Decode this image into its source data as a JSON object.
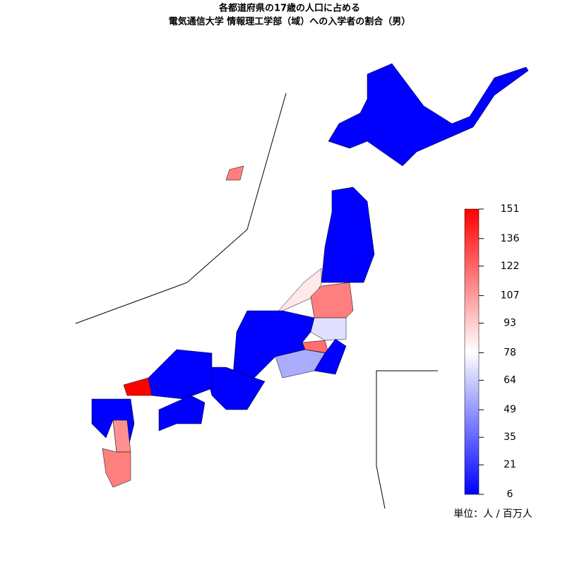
{
  "header": {
    "title_line1": "各都道府県の17歳の人口に占める",
    "title_line2": "電気通信大学 情報理工学部（域）への入学者の割合（男）"
  },
  "map": {
    "values": [
      6,
      6,
      85,
      115,
      70,
      120,
      6,
      55,
      6,
      6,
      151,
      6,
      6,
      110,
      115,
      115
    ]
  },
  "colorbar": {
    "lim": [
      6,
      151
    ],
    "ticks": [
      6,
      21,
      35,
      49,
      64,
      78,
      93,
      107,
      122,
      136,
      151
    ],
    "unit_label": "単位：人 / 百万人"
  }
}
